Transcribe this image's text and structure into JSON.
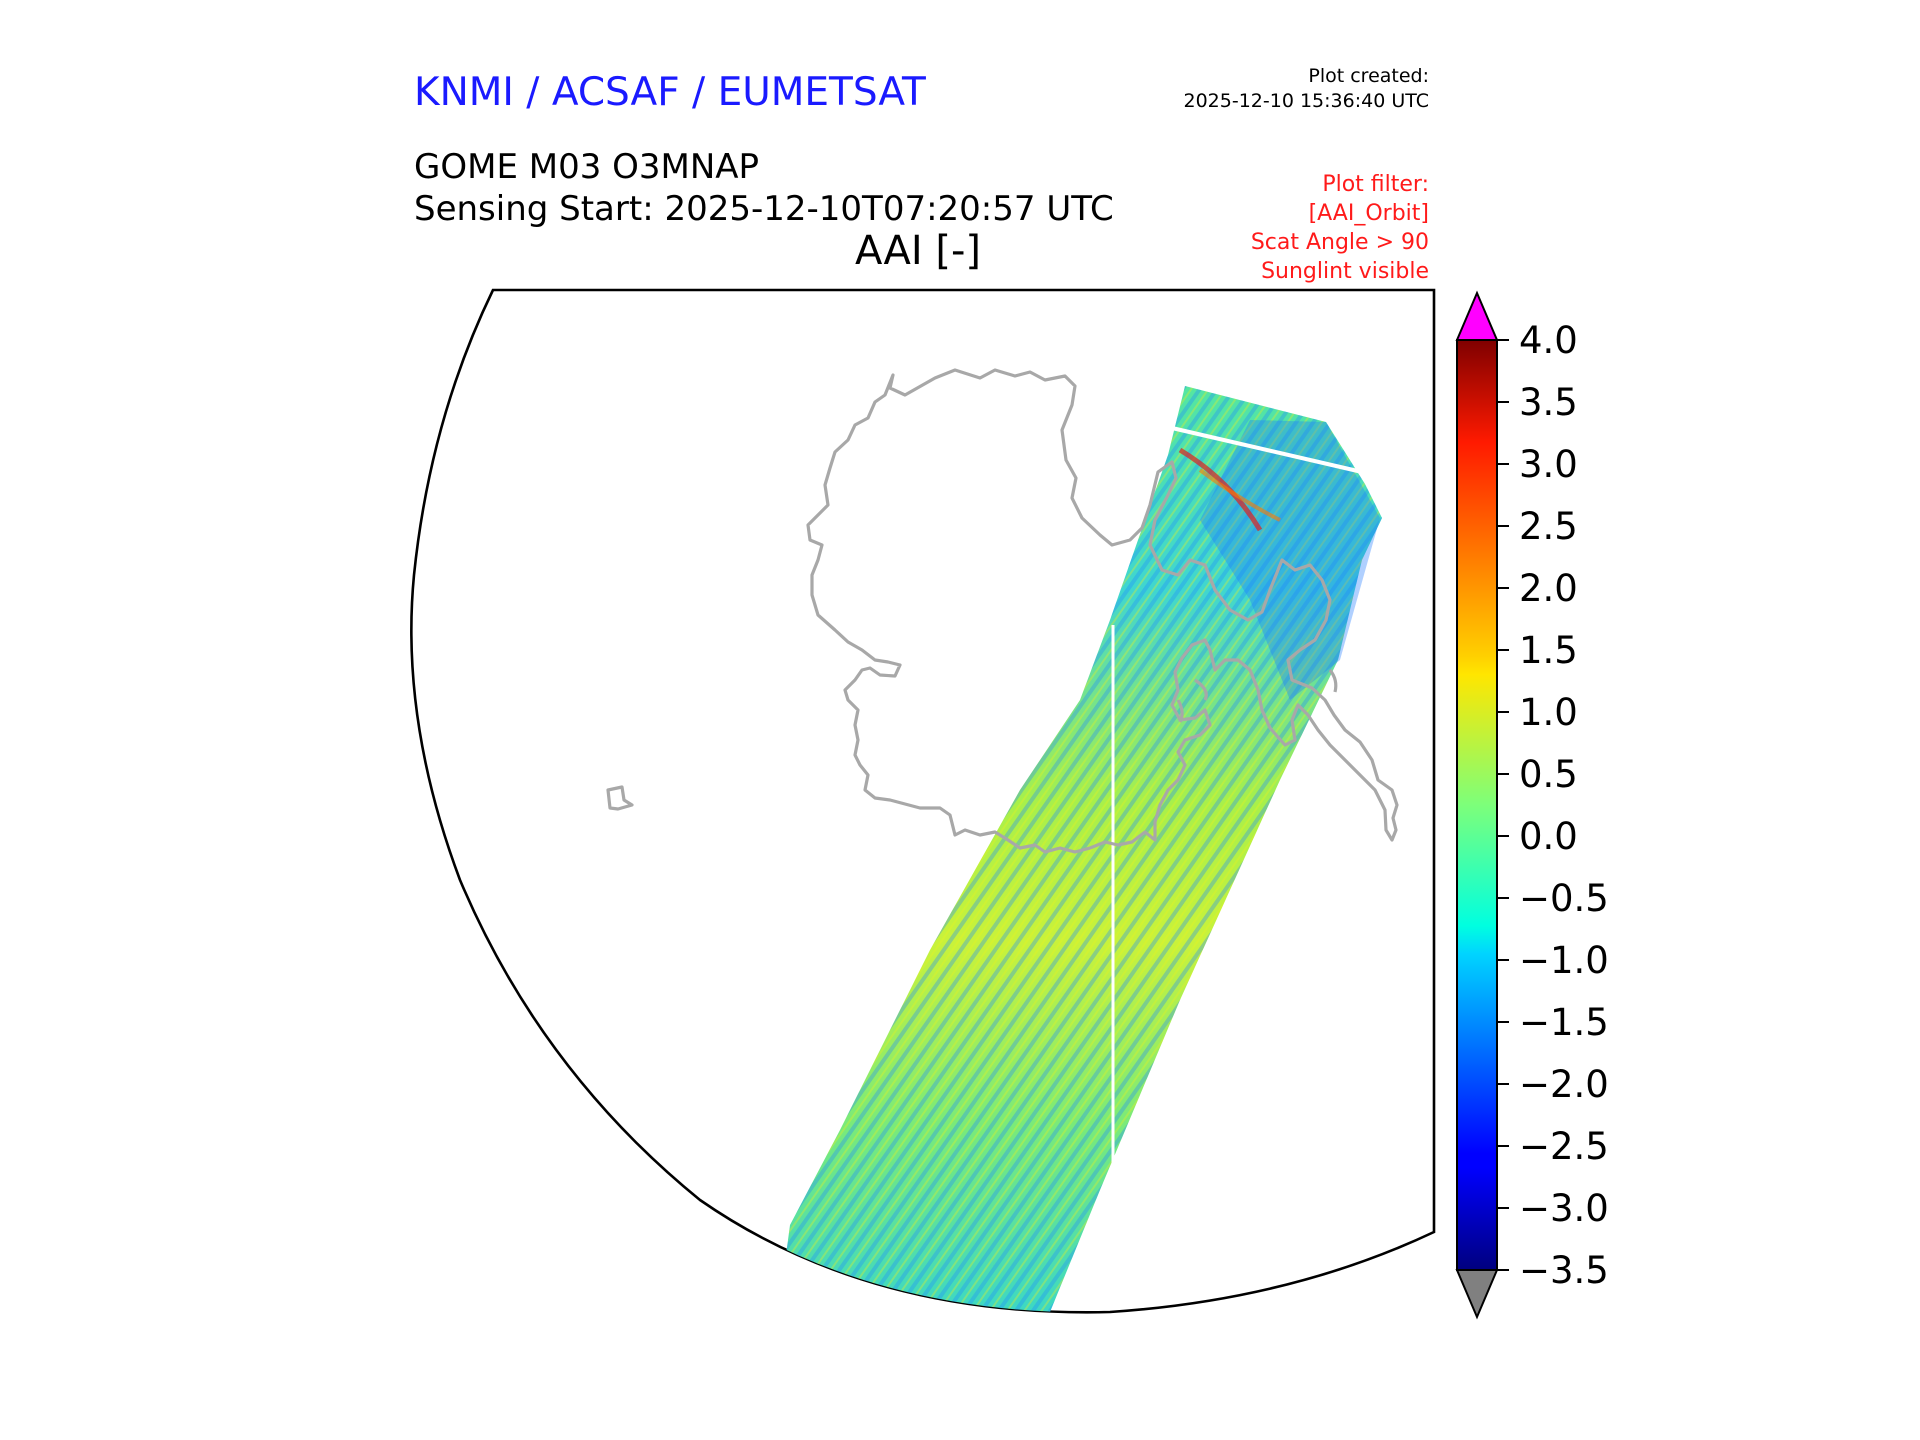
{
  "header": {
    "agency": "KNMI / ACSAF / EUMETSAT",
    "created_label": "Plot created:",
    "created_time": "2025-12-10 15:36:40 UTC",
    "product": "GOME M03 O3MNAP",
    "sensing_start": "Sensing Start: 2025-12-10T07:20:57 UTC",
    "quantity": "AAI [-]"
  },
  "filter": {
    "lines": [
      "Plot filter:",
      "[AAI_Orbit]",
      "Scat Angle > 90",
      "Sunglint visible"
    ]
  },
  "colorbar": {
    "min": -3.5,
    "max": 4.0,
    "ticks": [
      "4.0",
      "3.5",
      "3.0",
      "2.5",
      "2.0",
      "1.5",
      "1.0",
      "0.5",
      "0.0",
      "−0.5",
      "−1.0",
      "−1.5",
      "−2.0",
      "−2.5",
      "−3.0",
      "−3.5"
    ],
    "over_color": "#ff00ff",
    "under_color": "#808080",
    "colormap": "jet"
  },
  "map": {
    "coastline_color": "#a8a8a8",
    "region": "Antarctica (south polar projection)"
  }
}
